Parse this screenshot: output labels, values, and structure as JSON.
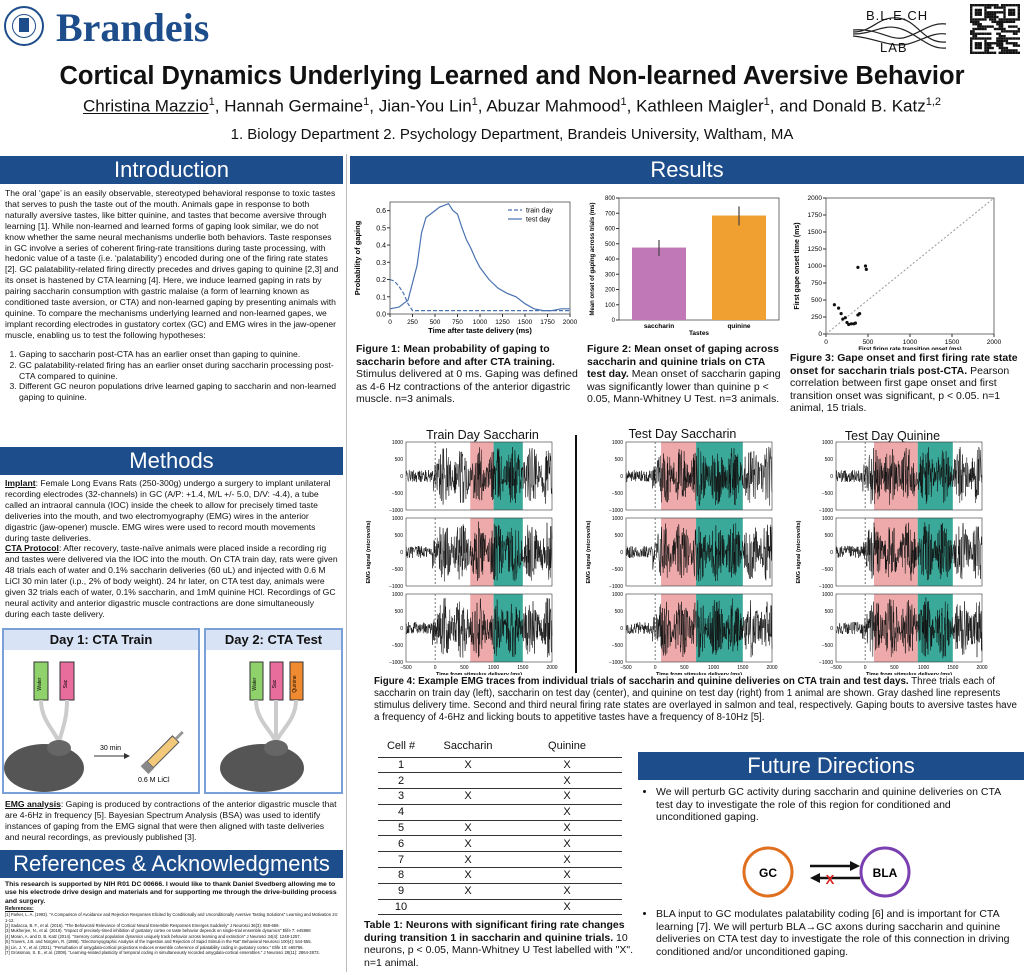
{
  "header": {
    "logo_text": "Brandeis",
    "seal_text": "BRANDEIS UNIVERSITY",
    "lab_top": "B.L.E.CH",
    "lab_bottom": "LAB",
    "title": "Cortical Dynamics Underlying Learned and Non-learned Aversive Behavior",
    "authors": [
      {
        "name": "Christina Mazzio",
        "sup": "1",
        "underline": true
      },
      {
        "name": "Hannah Germaine",
        "sup": "1"
      },
      {
        "name": "Jian-You Lin",
        "sup": "1"
      },
      {
        "name": "Abuzar Mahmood",
        "sup": "1"
      },
      {
        "name": "Kathleen Maigler",
        "sup": "1"
      },
      {
        "name": "and Donald B. Katz",
        "sup": "1,2"
      }
    ],
    "affiliations": "1. Biology Department 2. Psychology Department, Brandeis University, Waltham, MA"
  },
  "colors": {
    "section_bar": "#1e4d8c",
    "saccharin": "#c178b6",
    "quinine": "#f0a030",
    "salmon": "#eeaaaa",
    "teal": "#3aa99a"
  },
  "intro": {
    "heading": "Introduction",
    "text": "The oral ‘gape’ is an easily observable, stereotyped behavioral response to toxic tastes that serves to push the taste out of the mouth. Animals gape in response to both naturally aversive tastes, like bitter quinine, and tastes that become aversive through learning [1]. While non-learned and learned forms of gaping look similar, we do not know whether the same neural mechanisms underlie both behaviors. Taste responses in GC involve a series of coherent firing-rate transitions during taste processing, with hedonic value of a taste (i.e. ‘palatability’) encoded during one of the firing rate states [2]. GC palatability-related firing directly precedes and drives gaping to quinine [2,3] and its onset is hastened by CTA learning [4]. Here, we induce learned gaping in rats by pairing saccharin consumption with gastric malaise (a form of learning known as conditioned taste aversion, or CTA) and non-learned gaping by presenting animals with quinine. To compare the mechanisms underlying learned and non-learned gapes, we implant recording electrodes in gustatory cortex (GC) and EMG wires in the jaw-opener muscle, enabling us to test the following hypotheses:",
    "hypotheses": [
      "Gaping to saccharin post-CTA has an earlier onset than gaping to quinine.",
      "GC palatability-related firing has an earlier onset during saccharin processing post-CTA compared to quinine.",
      "Different GC neuron populations drive learned gaping to saccharin and non-learned gaping to quinine."
    ]
  },
  "methods": {
    "heading": "Methods",
    "implant_label": "Implant",
    "implant_text": ": Female Long Evans Rats (250-300g) undergo a surgery to implant unilateral recording electrodes (32-channels) in GC (A/P: +1.4, M/L +/- 5.0, D/V: -4.4), a tube called an intraoral cannula (IOC) inside the cheek to allow for precisely timed taste deliveries into the mouth, and two electromyography (EMG) wires in the anterior digastric (jaw-opener) muscle. EMG wires were used to record mouth movements during taste deliveries.",
    "cta_label": "CTA Protocol",
    "cta_text": ": After recovery, taste-naïve animals were placed inside a recording rig and tastes were delivered via the IOC into the mouth. On CTA train day, rats were given 48 trials each of water and 0.1% saccharin deliveries (60 uL) and injected with 0.6 M LiCl 30 min later (i.p., 2% of body weight). 24 hr later, on CTA test day, animals were given 32 trials each of water, 0.1% saccharin, and 1mM quinine HCl. Recordings of GC neural activity and anterior digastric muscle contractions are done simultaneously during each taste delivery.",
    "day1_title": "Day 1: CTA Train",
    "day2_title": "Day 2: CTA Test",
    "tube_water": "Water",
    "tube_sac": "Sac",
    "tube_quinine": "Quinine",
    "inj_time": "30 min",
    "inj_dose": "0.6 M LiCl",
    "emg_label": "EMG analysis",
    "emg_text": ": Gaping is produced by contractions of the anterior digastric muscle that are 4-6Hz in frequency [5]. Bayesian Spectrum Analysis (BSA) was used to identify instances of gaping from the EMG signal that were then aligned with taste deliveries and neural recordings, as previously published [3]."
  },
  "refs": {
    "heading": "References & Acknowledgments",
    "ack": "This research is supported by NIH R01 DC 00666. I would like to thank Daniel Svedberg allowing me to use his electrode drive design and materials and for supporting me through the drive-building process and surgery.",
    "label": "References:",
    "items": [
      "[1] Parker, L. A. (1993). \"A Comparison of Avoidance and Rejection Responses Elicited by Conditionally and Unconditionally Aversive Tasting Solutions\" Learning and Motivation 24: 1-12.",
      "[2] Sadacca, B. F., et al. (2016). \"The Behavioral Relevance of Cortical Neural Ensemble Responses Emerges Suddenly\" J Neurosci 36(3): 655-669.",
      "[3] Mukherjee, N., et al. (2019). \"Impact of precisely-timed inhibition of gustatory cortex on taste behavior depends on single-trial ensemble dynamics\" Elife 7: e45968",
      "[4] Moran, A. and D. B. Katz (2014). \"Sensory cortical population dynamics uniquely track behavior across learning and extinction\" J Neurosci 34(4): 1248-1257.",
      "[5] Travers, J.B. and Norgren, R. (1986). \"Electromyographic Analysis of the Ingestion and Rejection of Sapid Stimuli in the Rat\" Behavioral Neurosci 100(4): 544-555.",
      "[6] Lin, J. Y., et al. (2021). \"Perturbation of amygdala-cortical projections reduces ensemble coherence of palatability coding in gustatory cortex.\" Elife 10: e65766.",
      "[7] Grossman, S. E., et al. (2008). \"Learning-related plasticity of temporal coding in simultaneously recorded amygdala-cortical ensembles.\" J Neurosci 28(11): 2864-2873."
    ]
  },
  "results": {
    "heading": "Results",
    "fig1": {
      "bold": "Figure 1: Mean probability of gaping to saccharin before and after CTA training.",
      "text": " Stimulus delivered at 0 ms. Gaping was defined as 4-6 Hz contractions of the anterior digastric muscle. n=3 animals."
    },
    "fig2": {
      "bold": "Figure 2: Mean onset of gaping across saccharin and quinine trials on CTA test day.",
      "text": " Mean onset of saccharin gaping was significantly lower than quinine p < 0.05, Mann-Whitney U Test. n=3 animals."
    },
    "fig3": {
      "bold": "Figure 3: Gape onset and first firing rate state onset for saccharin trials post-CTA.",
      "text": " Pearson correlation between first gape onset and first transition onset was significant, p < 0.05. n=1 animal, 15 trials."
    },
    "fig4": {
      "bold": "Figure 4: Example EMG traces from individual trials of saccharin and quinine deliveries on CTA train and test days.",
      "text": " Three trials each of saccharin on train day (left), saccharin on test day (center), and quinine on test day (right) from 1 animal are shown. Gray dashed line represents stimulus delivery time. Second and third neural firing rate states are overlayed in salmon and teal, respectively. Gaping bouts to aversive tastes have a frequency of 4-6Hz and licking bouts to appetitive tastes have a frequency of 8-10Hz [5]."
    },
    "emg_titles": [
      "Train Day Saccharin",
      "Test Day Saccharin",
      "Test Day Quinine"
    ],
    "emg_ylabel": "EMG signal (microvolts)",
    "emg_xlabel": "Time from stimulus delivery (ms)",
    "emg_yticks": [
      "1000",
      "500",
      "0",
      "−500",
      "−1000"
    ],
    "emg_xticks": [
      "−500",
      "0",
      "500",
      "1000",
      "1500",
      "2000"
    ],
    "table": {
      "headers": [
        "Cell #",
        "Saccharin",
        "Quinine"
      ],
      "rows": [
        [
          "1",
          "X",
          "X"
        ],
        [
          "2",
          "",
          "X"
        ],
        [
          "3",
          "X",
          "X"
        ],
        [
          "4",
          "",
          "X"
        ],
        [
          "5",
          "X",
          "X"
        ],
        [
          "6",
          "X",
          "X"
        ],
        [
          "7",
          "X",
          "X"
        ],
        [
          "8",
          "X",
          "X"
        ],
        [
          "9",
          "X",
          "X"
        ],
        [
          "10",
          "",
          "X"
        ]
      ],
      "caption_bold": "Table 1: Neurons with significant firing rate changes during transition 1 in saccharin and quinine trials.",
      "caption_text": " 10 neurons, p < 0.05, Mann-Whitney U Test labelled with \"X\". n=1 animal."
    }
  },
  "future": {
    "heading": "Future Directions",
    "bullet1": "We will perturb GC activity during saccharin and quinine deliveries on CTA test day to investigate the role of this region for conditioned and unconditioned gaping.",
    "bullet2": "BLA input to GC modulates palatability coding [6] and is important for CTA learning [7]. We will perturb BLA→GC axons during saccharin and quinine deliveries on CTA test day to investigate the role of this connection in driving conditioned and/or unconditioned gaping.",
    "node_gc": "GC",
    "node_bla": "BLA",
    "x_mark": "X"
  },
  "chart_data": [
    {
      "type": "line",
      "xlabel": "Time after taste delivery (ms)",
      "ylabel": "Probability of gaping",
      "xlim": [
        0,
        2000
      ],
      "ylim": [
        0,
        0.65
      ],
      "xticks": [
        0,
        250,
        500,
        750,
        1000,
        1250,
        1500,
        1750,
        2000
      ],
      "yticks": [
        0.0,
        0.1,
        0.2,
        0.3,
        0.4,
        0.5,
        0.6
      ],
      "legend_position": "top-right",
      "series": [
        {
          "name": "train day",
          "style": "dashed",
          "x": [
            0,
            50,
            100,
            150,
            200,
            250,
            300,
            400,
            600,
            800,
            1000,
            1200,
            1400,
            1600,
            1800,
            2000
          ],
          "y": [
            0.2,
            0.19,
            0.16,
            0.12,
            0.06,
            0.02,
            0.02,
            0.02,
            0.02,
            0.02,
            0.02,
            0.02,
            0.02,
            0.02,
            0.02,
            0.02
          ]
        },
        {
          "name": "test day",
          "style": "solid",
          "x": [
            0,
            100,
            200,
            300,
            350,
            400,
            450,
            500,
            550,
            600,
            650,
            700,
            750,
            800,
            850,
            900,
            950,
            1000,
            1100,
            1200,
            1300,
            1400,
            1500,
            1600,
            1700,
            1800,
            1900,
            2000
          ],
          "y": [
            0.03,
            0.04,
            0.08,
            0.28,
            0.47,
            0.56,
            0.58,
            0.6,
            0.62,
            0.63,
            0.64,
            0.6,
            0.58,
            0.5,
            0.43,
            0.38,
            0.32,
            0.27,
            0.2,
            0.15,
            0.12,
            0.1,
            0.06,
            0.03,
            0.02,
            0.02,
            0.03,
            0.03
          ]
        }
      ]
    },
    {
      "type": "bar",
      "xlabel": "Tastes",
      "ylabel": "Mean onset of gaping across trials (ms)",
      "categories": [
        "saccharin",
        "quinine"
      ],
      "values": [
        475,
        685
      ],
      "errors": [
        [
          420,
          525
        ],
        [
          620,
          745
        ]
      ],
      "ylim": [
        0,
        800
      ],
      "yticks": [
        0,
        100,
        200,
        300,
        400,
        500,
        600,
        700,
        800
      ]
    },
    {
      "type": "scatter",
      "xlabel": "First firing rate transition onset (ms)",
      "ylabel": "First gape onset time (ms)",
      "xlim": [
        0,
        2000
      ],
      "ylim": [
        0,
        2000
      ],
      "xticks": [
        0,
        500,
        1000,
        1500,
        2000
      ],
      "yticks": [
        0,
        250,
        500,
        750,
        1000,
        1250,
        1500,
        1750,
        2000
      ],
      "identity_line": true,
      "x": [
        100,
        150,
        180,
        200,
        230,
        250,
        270,
        300,
        330,
        350,
        380,
        400,
        470,
        480,
        380
      ],
      "y": [
        430,
        380,
        300,
        220,
        240,
        170,
        140,
        150,
        150,
        160,
        280,
        300,
        1000,
        950,
        980
      ]
    }
  ]
}
